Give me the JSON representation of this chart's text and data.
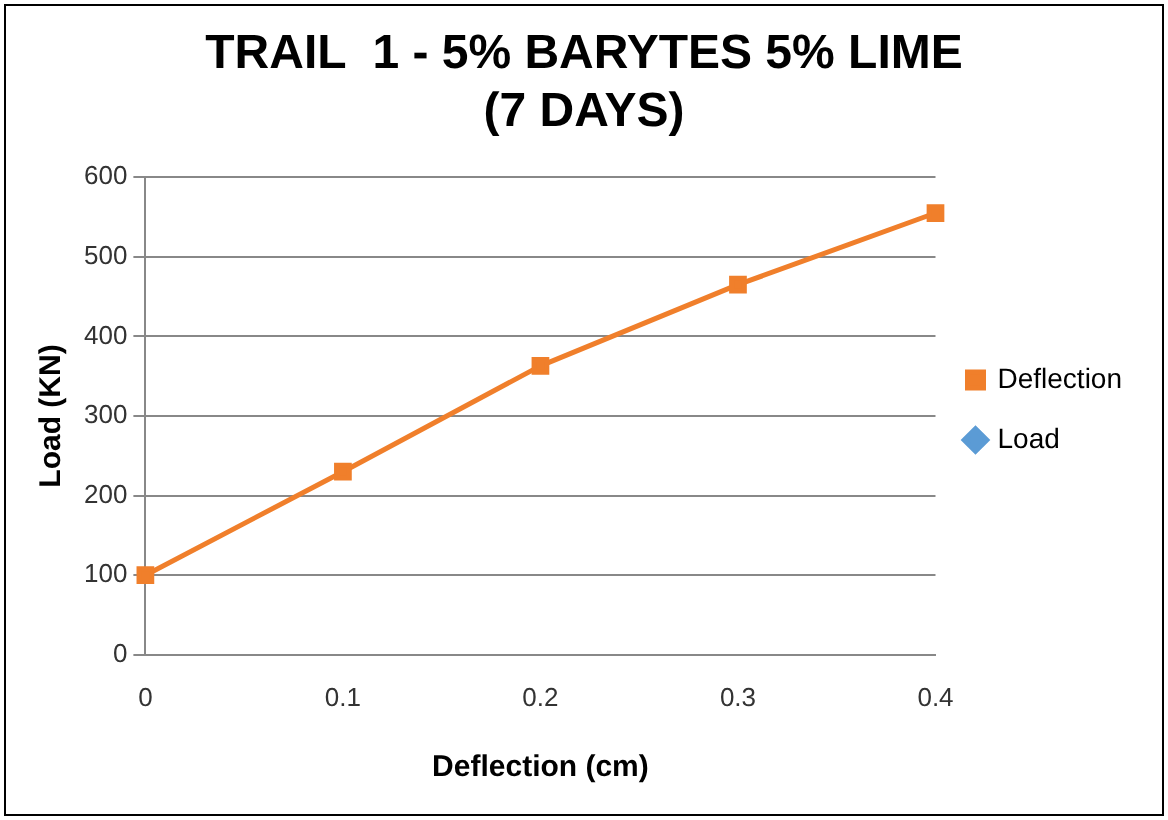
{
  "chart_data": {
    "type": "line",
    "title": "TRAIL  1 - 5% BARYTES 5% LIME\n(7 DAYS)",
    "xlabel": "Deflection (cm)",
    "ylabel": "Load (KN)",
    "categories": [
      "0",
      "0.1",
      "0.2",
      "0.3",
      "0.4"
    ],
    "series": [
      {
        "name": "Deflection",
        "color": "#f07f2b",
        "marker": "square",
        "values": [
          100,
          230,
          363,
          465,
          555
        ]
      },
      {
        "name": "Load",
        "color": "#5b9bd5",
        "marker": "diamond",
        "values": [
          null,
          null,
          null,
          null,
          null
        ]
      }
    ],
    "ylim": [
      0,
      600
    ],
    "yticks": [
      0,
      100,
      200,
      300,
      400,
      500,
      600
    ],
    "grid": "y",
    "legend": "right",
    "line_style": "solid"
  }
}
